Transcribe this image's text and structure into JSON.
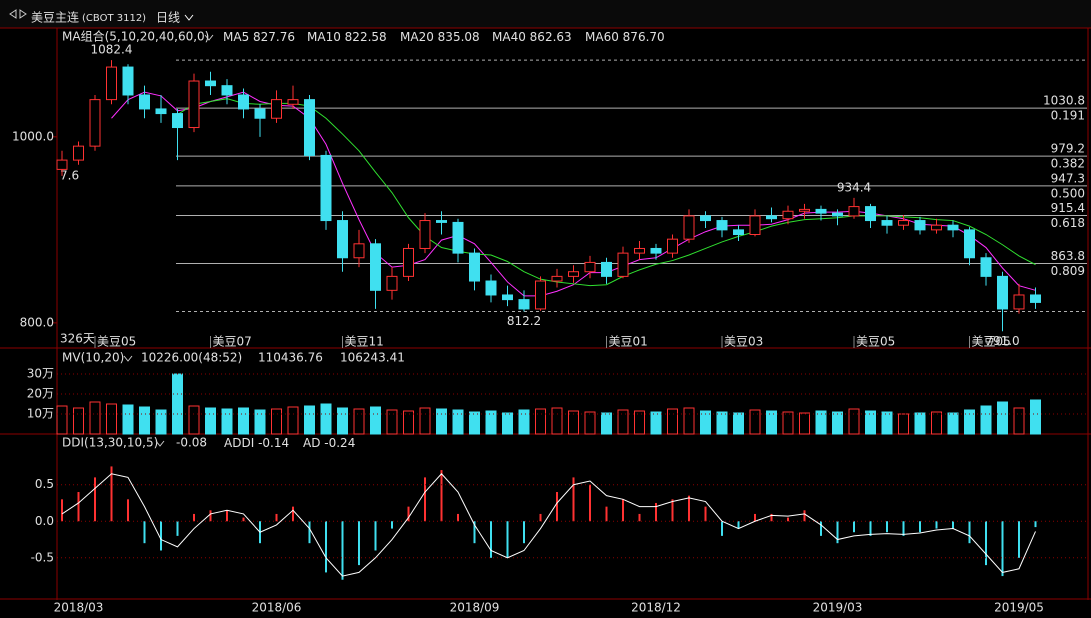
{
  "chart_data": {
    "type": "candlestick",
    "symbol": "美豆主连",
    "code": "(CBOT 3112)",
    "period": "日线",
    "days": "326天",
    "cut_label": "7.6",
    "ma_title": "MA组合(5,10,20,40,60,0)",
    "ma": [
      {
        "name": "MA5",
        "color": "#ffffff",
        "value": 827.76
      },
      {
        "name": "MA10",
        "color": "#f0e040",
        "value": 822.58
      },
      {
        "name": "MA20",
        "color": "#ff30ff",
        "value": 835.08,
        "values": [
          null,
          null,
          null,
          1020,
          1040,
          1048,
          1044,
          1028,
          1031,
          1038,
          1043,
          1048,
          1038,
          1034,
          1033,
          1020,
          992,
          950,
          911,
          875,
          860,
          862,
          868,
          889,
          894,
          885,
          865,
          844,
          829,
          829,
          834,
          841,
          854,
          854,
          861,
          868,
          870,
          880,
          890,
          898,
          904,
          905,
          905,
          906,
          911,
          918,
          919,
          919,
          920,
          918,
          915,
          912,
          906,
          905,
          904,
          894,
          881,
          859,
          840,
          835
        ]
      },
      {
        "name": "MA40",
        "color": "#30e030",
        "value": 862.63,
        "values": [
          null,
          null,
          null,
          null,
          null,
          null,
          null,
          1024,
          1035,
          1038,
          1041,
          1036,
          1035,
          1036,
          1036,
          1033,
          1020,
          1003,
          985,
          962,
          940,
          913,
          893,
          881,
          877,
          874,
          873,
          866,
          855,
          847,
          844,
          842,
          840,
          841,
          850,
          857,
          863,
          867,
          873,
          880,
          887,
          893,
          898,
          904,
          908,
          911,
          912,
          913,
          915,
          915,
          915,
          914,
          913,
          911,
          910,
          904,
          895,
          884,
          872,
          862.63
        ]
      },
      {
        "name": "MA60",
        "color": "#9a9a9a",
        "value": 876.7,
        "value_label": "876.70"
      }
    ],
    "ylim": [
      773,
      1117
    ],
    "yticks": [
      {
        "value": 1000,
        "label": "1000.0"
      },
      {
        "value": 800,
        "label": "800.0"
      }
    ],
    "candles": [
      [
        965,
        985,
        958,
        975
      ],
      [
        975,
        995,
        970,
        990
      ],
      [
        990,
        1045,
        985,
        1040
      ],
      [
        1040,
        1082.4,
        1035,
        1075
      ],
      [
        1075,
        1078,
        1035,
        1045
      ],
      [
        1045,
        1055,
        1020,
        1030
      ],
      [
        1030,
        1045,
        1015,
        1025
      ],
      [
        1025,
        1030,
        975,
        1010
      ],
      [
        1010,
        1068,
        1005,
        1060
      ],
      [
        1060,
        1070,
        1045,
        1055
      ],
      [
        1055,
        1062,
        1035,
        1045
      ],
      [
        1045,
        1052,
        1020,
        1030
      ],
      [
        1030,
        1035,
        1000,
        1020
      ],
      [
        1020,
        1050,
        1015,
        1040
      ],
      [
        1035,
        1055,
        1030,
        1040
      ],
      [
        1040,
        1045,
        975,
        980
      ],
      [
        980,
        985,
        900,
        910
      ],
      [
        910,
        920,
        855,
        870
      ],
      [
        870,
        900,
        860,
        885
      ],
      [
        885,
        890,
        815,
        835
      ],
      [
        835,
        860,
        825,
        850
      ],
      [
        850,
        885,
        845,
        880
      ],
      [
        880,
        918,
        875,
        910
      ],
      [
        910,
        920,
        895,
        908
      ],
      [
        908,
        912,
        865,
        875
      ],
      [
        875,
        880,
        835,
        845
      ],
      [
        845,
        852,
        822,
        830
      ],
      [
        830,
        840,
        818,
        825
      ],
      [
        825,
        835,
        812.2,
        815
      ],
      [
        815,
        850,
        813,
        845
      ],
      [
        845,
        858,
        838,
        850
      ],
      [
        850,
        862,
        843,
        855
      ],
      [
        855,
        872,
        848,
        865
      ],
      [
        865,
        870,
        842,
        850
      ],
      [
        850,
        882,
        848,
        875
      ],
      [
        875,
        888,
        868,
        880
      ],
      [
        880,
        885,
        868,
        875
      ],
      [
        875,
        895,
        870,
        890
      ],
      [
        890,
        922,
        886,
        915
      ],
      [
        915,
        920,
        902,
        910
      ],
      [
        910,
        914,
        892,
        900
      ],
      [
        900,
        905,
        888,
        895
      ],
      [
        895,
        922,
        893,
        915
      ],
      [
        915,
        924,
        908,
        912
      ],
      [
        912,
        926,
        906,
        920
      ],
      [
        920,
        928,
        912,
        922
      ],
      [
        922,
        926,
        910,
        918
      ],
      [
        918,
        922,
        905,
        915
      ],
      [
        915,
        934.4,
        912,
        925
      ],
      [
        925,
        928,
        902,
        910
      ],
      [
        910,
        915,
        896,
        905
      ],
      [
        905,
        916,
        900,
        910
      ],
      [
        910,
        914,
        895,
        900
      ],
      [
        900,
        912,
        896,
        905
      ],
      [
        905,
        910,
        892,
        900
      ],
      [
        900,
        903,
        862,
        870
      ],
      [
        870,
        875,
        840,
        850
      ],
      [
        850,
        855,
        791,
        815
      ],
      [
        815,
        842,
        810,
        830
      ],
      [
        830,
        838,
        815,
        822
      ]
    ],
    "annotations": [
      1082.4,
      812.2,
      934.4,
      {
        "value": 791,
        "label": "791.0"
      }
    ],
    "fib_levels": [
      {
        "value": 1030.8,
        "ratio": 0.191
      },
      {
        "value": 979.2,
        "ratio": 0.382
      },
      {
        "value": 947.3,
        "ratio": {
          "value": 0.5,
          "label": "0.500"
        }
      },
      {
        "value": 915.4,
        "ratio": 0.618
      },
      {
        "value": 863.8,
        "ratio": 0.809
      }
    ],
    "contract_labels": [
      null,
      null,
      "美豆05",
      null,
      null,
      null,
      null,
      null,
      null,
      "美豆07",
      null,
      null,
      null,
      null,
      null,
      null,
      null,
      "美豆11",
      null,
      null,
      null,
      null,
      null,
      null,
      null,
      null,
      null,
      null,
      null,
      null,
      null,
      null,
      null,
      "美豆01",
      null,
      null,
      null,
      null,
      null,
      null,
      "美豆03",
      null,
      null,
      null,
      null,
      null,
      null,
      null,
      "美豆05",
      null,
      null,
      null,
      null,
      null,
      null,
      "美豆05",
      null,
      null,
      null,
      null
    ],
    "dates": [
      null,
      "2018/03",
      null,
      null,
      null,
      null,
      null,
      null,
      null,
      null,
      null,
      null,
      null,
      "2018/06",
      null,
      null,
      null,
      null,
      null,
      null,
      null,
      null,
      null,
      null,
      null,
      "2018/09",
      null,
      null,
      null,
      null,
      null,
      null,
      null,
      null,
      null,
      null,
      "2018/12",
      null,
      null,
      null,
      null,
      null,
      null,
      null,
      null,
      null,
      null,
      "2019/03",
      null,
      null,
      null,
      null,
      null,
      null,
      null,
      null,
      null,
      null,
      "2019/05",
      null
    ],
    "volume": {
      "title": "MV(10,20)",
      "current": "10226.00(48:52)",
      "mv10": 110436.76,
      "mv20": 106243.41,
      "ylim": [
        0,
        410000
      ],
      "yticks": [
        {
          "value": 100000,
          "label": "10万"
        },
        {
          "value": 200000,
          "label": "20万"
        },
        {
          "value": 300000,
          "label": "30万"
        }
      ],
      "values": [
        140000,
        130000,
        160000,
        150000,
        145000,
        135000,
        120000,
        300000,
        140000,
        130000,
        125000,
        130000,
        120000,
        125000,
        135000,
        140000,
        150000,
        130000,
        125000,
        135000,
        120000,
        115000,
        130000,
        125000,
        120000,
        110000,
        115000,
        105000,
        120000,
        125000,
        130000,
        115000,
        110000,
        105000,
        120000,
        115000,
        110000,
        125000,
        130000,
        115000,
        110000,
        105000,
        120000,
        115000,
        110000,
        105000,
        115000,
        110000,
        125000,
        115000,
        110000,
        100000,
        105000,
        110000,
        105000,
        120000,
        140000,
        160000,
        130000,
        170000
      ]
    },
    "ddi": {
      "title": "DDI(13,30,10,5)",
      "value": -0.08,
      "addi_name": "ADDI",
      "addi": -0.14,
      "ad_name": "AD",
      "ad": -0.24,
      "ylim": [
        -1.05,
        1.18
      ],
      "yticks": [
        0.5,
        {
          "value": 0,
          "label": "0.0"
        },
        -0.5
      ],
      "values": [
        0.3,
        0.4,
        0.6,
        0.75,
        0.3,
        -0.3,
        -0.4,
        -0.2,
        0.1,
        0.15,
        0.15,
        0.05,
        -0.3,
        0.1,
        0.2,
        -0.3,
        -0.7,
        -0.8,
        -0.6,
        -0.4,
        -0.1,
        0.2,
        0.6,
        0.7,
        0.1,
        -0.3,
        -0.5,
        -0.5,
        -0.3,
        0.1,
        0.4,
        0.6,
        0.5,
        0.2,
        0.3,
        0.1,
        0.25,
        0.3,
        0.35,
        0.2,
        -0.2,
        -0.1,
        0.1,
        0.1,
        0.05,
        0.15,
        -0.2,
        -0.3,
        -0.15,
        -0.2,
        -0.15,
        -0.2,
        -0.15,
        -0.1,
        -0.1,
        -0.3,
        -0.6,
        -0.75,
        -0.5,
        -0.08
      ],
      "addi_values": [
        0.1,
        0.25,
        0.45,
        0.65,
        0.6,
        0.2,
        -0.25,
        -0.35,
        -0.1,
        0.1,
        0.15,
        0.1,
        -0.15,
        -0.05,
        0.15,
        -0.1,
        -0.5,
        -0.75,
        -0.7,
        -0.5,
        -0.25,
        0.05,
        0.4,
        0.65,
        0.4,
        -0.05,
        -0.4,
        -0.5,
        -0.4,
        -0.1,
        0.25,
        0.5,
        0.55,
        0.35,
        0.3,
        0.2,
        0.2,
        0.27,
        0.32,
        0.27,
        0,
        -0.1,
        0,
        0.08,
        0.07,
        0.1,
        -0.05,
        -0.25,
        -0.2,
        -0.18,
        -0.17,
        -0.18,
        -0.16,
        -0.12,
        -0.1,
        -0.2,
        -0.45,
        -0.7,
        -0.65,
        -0.14
      ]
    }
  }
}
